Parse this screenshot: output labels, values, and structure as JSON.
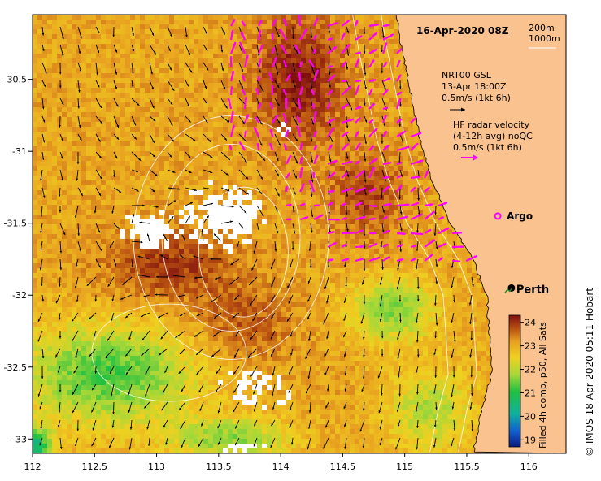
{
  "map": {
    "date_title": "16-Apr-2020 08Z",
    "depth_legend": [
      "200m",
      "1000m"
    ],
    "x_ticks": [
      {
        "value": 112,
        "label": "112"
      },
      {
        "value": 112.5,
        "label": "112.5"
      },
      {
        "value": 113,
        "label": "113"
      },
      {
        "value": 113.5,
        "label": "113.5"
      },
      {
        "value": 114,
        "label": "114"
      },
      {
        "value": 114.5,
        "label": "114.5"
      },
      {
        "value": 115,
        "label": "115"
      },
      {
        "value": 115.5,
        "label": "115.5"
      },
      {
        "value": 116,
        "label": "116"
      }
    ],
    "y_ticks": [
      {
        "value": -30.5,
        "label": "-30.5"
      },
      {
        "value": -31,
        "label": "-31"
      },
      {
        "value": -31.5,
        "label": "-31.5"
      },
      {
        "value": -32,
        "label": "-32"
      },
      {
        "value": -32.5,
        "label": "-32.5"
      },
      {
        "value": -33,
        "label": "-33"
      }
    ],
    "lon_range": [
      112,
      116.3
    ],
    "lat_range": [
      -33.1,
      -30.05
    ],
    "legend_gsl": [
      "NRT00 GSL",
      "13-Apr 18:00Z",
      "0.5m/s (1kt 6h)"
    ],
    "legend_hf": [
      "HF radar velocity",
      "(4-12h avg) noQC",
      "0.5m/s (1kt 6h)"
    ],
    "argo_label": "Argo",
    "city_label": "Perth",
    "city_lon": 115.86,
    "city_lat": -31.95,
    "argo_lon": 115.75,
    "argo_lat": -31.45,
    "colorbar": {
      "ticks": [
        "24",
        "23",
        "22",
        "21",
        "20",
        "19"
      ],
      "label": "Filled 4h comp, p50, All Sats"
    },
    "credit": "© IMOS 18-Apr-2020 05:11 Hobart",
    "colors": {
      "land": "#f9c28f",
      "arrow_gsl": "#000000",
      "arrow_hf": "#ff00ff",
      "contour": "#ffffff",
      "city": "#000000",
      "argo": "#ff00ff"
    }
  }
}
